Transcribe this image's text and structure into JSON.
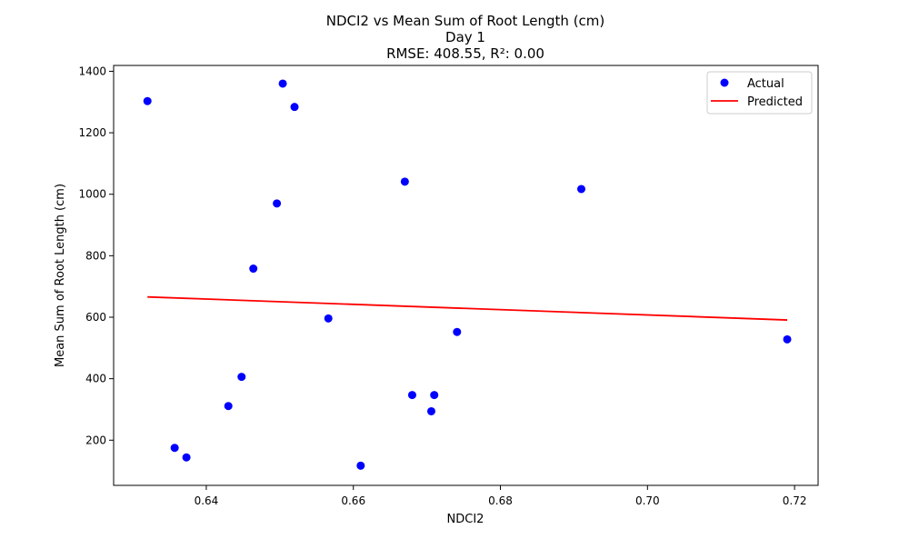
{
  "chart_data": {
    "type": "scatter",
    "title_lines": [
      "NDCI2 vs Mean Sum of Root Length (cm)",
      "Day 1",
      "RMSE: 408.55, R²: 0.00"
    ],
    "xlabel": "NDCI2",
    "ylabel": "Mean Sum of Root Length (cm)",
    "xlim": [
      0.6274,
      0.7232
    ],
    "ylim": [
      53,
      1419
    ],
    "xticks": [
      0.64,
      0.66,
      0.68,
      0.7,
      0.72
    ],
    "xtick_labels": [
      "0.64",
      "0.66",
      "0.68",
      "0.70",
      "0.72"
    ],
    "yticks": [
      200,
      400,
      600,
      800,
      1000,
      1200,
      1400
    ],
    "ytick_labels": [
      "200",
      "400",
      "600",
      "800",
      "1000",
      "1200",
      "1400"
    ],
    "grid": false,
    "legend_position": "top-right",
    "series": [
      {
        "name": "Actual",
        "kind": "scatter",
        "color": "#0000ff",
        "points": [
          {
            "x": 0.632,
            "y": 1303
          },
          {
            "x": 0.6357,
            "y": 175
          },
          {
            "x": 0.6373,
            "y": 144
          },
          {
            "x": 0.643,
            "y": 311
          },
          {
            "x": 0.6448,
            "y": 406
          },
          {
            "x": 0.6464,
            "y": 758
          },
          {
            "x": 0.6496,
            "y": 970
          },
          {
            "x": 0.6504,
            "y": 1360
          },
          {
            "x": 0.652,
            "y": 1284
          },
          {
            "x": 0.6566,
            "y": 596
          },
          {
            "x": 0.661,
            "y": 117
          },
          {
            "x": 0.667,
            "y": 1041
          },
          {
            "x": 0.668,
            "y": 347
          },
          {
            "x": 0.6706,
            "y": 294
          },
          {
            "x": 0.671,
            "y": 347
          },
          {
            "x": 0.6741,
            "y": 552
          },
          {
            "x": 0.691,
            "y": 1017
          },
          {
            "x": 0.719,
            "y": 528
          }
        ]
      },
      {
        "name": "Predicted",
        "kind": "line",
        "color": "#ff0000",
        "points": [
          {
            "x": 0.632,
            "y": 666
          },
          {
            "x": 0.719,
            "y": 591
          }
        ]
      }
    ]
  }
}
